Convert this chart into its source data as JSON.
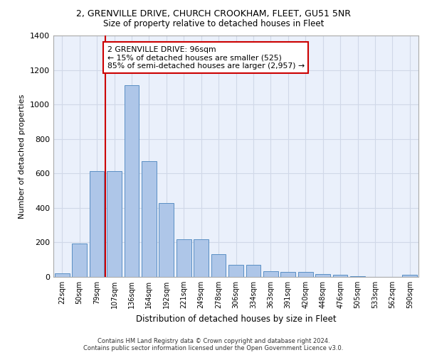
{
  "title_line1": "2, GRENVILLE DRIVE, CHURCH CROOKHAM, FLEET, GU51 5NR",
  "title_line2": "Size of property relative to detached houses in Fleet",
  "xlabel": "Distribution of detached houses by size in Fleet",
  "ylabel": "Number of detached properties",
  "bar_labels": [
    "22sqm",
    "50sqm",
    "79sqm",
    "107sqm",
    "136sqm",
    "164sqm",
    "192sqm",
    "221sqm",
    "249sqm",
    "278sqm",
    "306sqm",
    "334sqm",
    "363sqm",
    "391sqm",
    "420sqm",
    "448sqm",
    "476sqm",
    "505sqm",
    "533sqm",
    "562sqm",
    "590sqm"
  ],
  "bar_values": [
    20,
    195,
    615,
    615,
    1110,
    670,
    430,
    220,
    220,
    130,
    72,
    72,
    33,
    30,
    28,
    17,
    12,
    5,
    0,
    0,
    12
  ],
  "bar_color": "#aec6e8",
  "bar_edge_color": "#5a8fc4",
  "vline_x": 2.5,
  "vline_color": "#cc0000",
  "annotation_text": "2 GRENVILLE DRIVE: 96sqm\n← 15% of detached houses are smaller (525)\n85% of semi-detached houses are larger (2,957) →",
  "annotation_box_color": "#ffffff",
  "annotation_border_color": "#cc0000",
  "ylim": [
    0,
    1400
  ],
  "yticks": [
    0,
    200,
    400,
    600,
    800,
    1000,
    1200,
    1400
  ],
  "grid_color": "#d0d8e8",
  "background_color": "#eaf0fb",
  "footer_line1": "Contains HM Land Registry data © Crown copyright and database right 2024.",
  "footer_line2": "Contains public sector information licensed under the Open Government Licence v3.0."
}
